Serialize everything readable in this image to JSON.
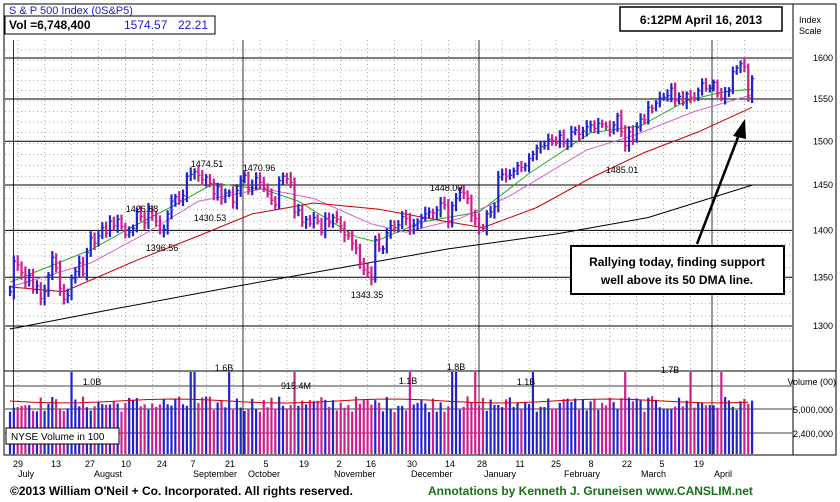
{
  "header": {
    "title": "S & P 500 Index  (0S&P5)",
    "volume_label": "Vol =6,748,400",
    "price": "1574.57",
    "change": "22.21",
    "timestamp": "6:12PM April 16, 2013",
    "scale_label_1": "Index",
    "scale_label_2": "Scale"
  },
  "annotation_note": {
    "line1": "Rallying today, finding support",
    "line2": "well above its 50 DMA line."
  },
  "volume_panel": {
    "legend": "NYSE Volume in 100",
    "axis_title": "Volume (00)",
    "axis_ticks": [
      "5,000,000",
      "2,400,000"
    ],
    "labels": [
      "1.0B",
      "1.6B",
      "915.4M",
      "1.1B",
      "1.8B",
      "1.1B",
      "1.7B"
    ]
  },
  "footer": {
    "copyright": "©2013 William O'Neil + Co. Incorporated. All rights reserved.",
    "credit": "Annotations by Kenneth J. Gruneisen www.CANSLIM.net"
  },
  "chart_data": {
    "type": "candlestick",
    "y_ticks": [
      1300,
      1350,
      1400,
      1450,
      1500,
      1550,
      1600
    ],
    "ylim": [
      1275,
      1620
    ],
    "y_scale": "log",
    "grid": true,
    "date_ticks": [
      "29",
      "13",
      "27",
      "10",
      "24",
      "7",
      "21",
      "5",
      "19",
      "2",
      "16",
      "30",
      "14",
      "28",
      "11",
      "25",
      "8",
      "22",
      "5",
      "19"
    ],
    "months": [
      "July",
      "August",
      "September",
      "October",
      "November",
      "December",
      "January",
      "February",
      "March",
      "April"
    ],
    "price_annotations": [
      "1426.68",
      "1396.56",
      "1474.51",
      "1430.53",
      "1470.96",
      "1343.35",
      "1448.00",
      "1485.01"
    ],
    "series": [
      {
        "kind": "price-bars",
        "points": [
          [
            0,
            1335
          ],
          [
            1,
            1367
          ],
          [
            2,
            1363
          ],
          [
            3,
            1355
          ],
          [
            4,
            1345
          ],
          [
            5,
            1352
          ],
          [
            6,
            1337
          ],
          [
            7,
            1341
          ],
          [
            8,
            1328
          ],
          [
            9,
            1335
          ],
          [
            10,
            1352
          ],
          [
            11,
            1371
          ],
          [
            12,
            1360
          ],
          [
            13,
            1338
          ],
          [
            14,
            1327
          ],
          [
            15,
            1331
          ],
          [
            16,
            1349
          ],
          [
            17,
            1356
          ],
          [
            18,
            1365
          ],
          [
            19,
            1354
          ],
          [
            20,
            1376
          ],
          [
            21,
            1392
          ],
          [
            22,
            1386
          ],
          [
            23,
            1394
          ],
          [
            24,
            1403
          ],
          [
            25,
            1397
          ],
          [
            26,
            1410
          ],
          [
            27,
            1405
          ],
          [
            28,
            1412
          ],
          [
            29,
            1404
          ],
          [
            30,
            1395
          ],
          [
            31,
            1398
          ],
          [
            32,
            1402
          ],
          [
            33,
            1420
          ],
          [
            34,
            1415
          ],
          [
            35,
            1408
          ],
          [
            36,
            1424
          ],
          [
            37,
            1416
          ],
          [
            38,
            1410
          ],
          [
            39,
            1400
          ],
          [
            40,
            1401
          ],
          [
            41,
            1418
          ],
          [
            42,
            1432
          ],
          [
            43,
            1437
          ],
          [
            44,
            1433
          ],
          [
            45,
            1438
          ],
          [
            46,
            1460
          ],
          [
            47,
            1462
          ],
          [
            48,
            1465
          ],
          [
            49,
            1461
          ],
          [
            50,
            1456
          ],
          [
            51,
            1459
          ],
          [
            52,
            1452
          ],
          [
            53,
            1440
          ],
          [
            54,
            1448
          ],
          [
            55,
            1435
          ],
          [
            56,
            1441
          ],
          [
            57,
            1442
          ],
          [
            58,
            1431
          ],
          [
            59,
            1444
          ],
          [
            60,
            1455
          ],
          [
            61,
            1461
          ],
          [
            62,
            1445
          ],
          [
            63,
            1450
          ],
          [
            64,
            1458
          ],
          [
            65,
            1453
          ],
          [
            66,
            1446
          ],
          [
            67,
            1440
          ],
          [
            68,
            1433
          ],
          [
            69,
            1428
          ],
          [
            70,
            1455
          ],
          [
            71,
            1460
          ],
          [
            72,
            1457
          ],
          [
            73,
            1453
          ],
          [
            74,
            1420
          ],
          [
            75,
            1422
          ],
          [
            76,
            1409
          ],
          [
            77,
            1412
          ],
          [
            78,
            1407
          ],
          [
            79,
            1414
          ],
          [
            80,
            1410
          ],
          [
            81,
            1398
          ],
          [
            82,
            1413
          ],
          [
            83,
            1408
          ],
          [
            84,
            1414
          ],
          [
            85,
            1412
          ],
          [
            86,
            1405
          ],
          [
            87,
            1395
          ],
          [
            88,
            1394
          ],
          [
            89,
            1386
          ],
          [
            90,
            1381
          ],
          [
            91,
            1366
          ],
          [
            92,
            1358
          ],
          [
            93,
            1355
          ],
          [
            94,
            1348
          ],
          [
            95,
            1390
          ],
          [
            96,
            1380
          ],
          [
            97,
            1380
          ],
          [
            98,
            1397
          ],
          [
            99,
            1405
          ],
          [
            100,
            1403
          ],
          [
            101,
            1406
          ],
          [
            102,
            1415
          ],
          [
            103,
            1413
          ],
          [
            104,
            1400
          ],
          [
            105,
            1405
          ],
          [
            106,
            1410
          ],
          [
            107,
            1413
          ],
          [
            108,
            1418
          ],
          [
            109,
            1420
          ],
          [
            110,
            1419
          ],
          [
            111,
            1422
          ],
          [
            112,
            1430
          ],
          [
            113,
            1428
          ],
          [
            114,
            1410
          ],
          [
            115,
            1427
          ],
          [
            116,
            1435
          ],
          [
            117,
            1442
          ],
          [
            118,
            1441
          ],
          [
            119,
            1435
          ],
          [
            120,
            1416
          ],
          [
            121,
            1413
          ],
          [
            122,
            1403
          ],
          [
            123,
            1402
          ],
          [
            124,
            1418
          ],
          [
            125,
            1420
          ],
          [
            126,
            1426
          ],
          [
            127,
            1459
          ],
          [
            128,
            1462
          ],
          [
            129,
            1460
          ],
          [
            130,
            1461
          ],
          [
            131,
            1466
          ],
          [
            132,
            1472
          ],
          [
            133,
            1470
          ],
          [
            134,
            1472
          ],
          [
            135,
            1480
          ],
          [
            136,
            1485
          ],
          [
            137,
            1492
          ],
          [
            138,
            1494
          ],
          [
            139,
            1495
          ],
          [
            140,
            1502
          ],
          [
            141,
            1501
          ],
          [
            142,
            1498
          ],
          [
            143,
            1507
          ],
          [
            144,
            1498
          ],
          [
            145,
            1500
          ],
          [
            146,
            1511
          ],
          [
            147,
            1513
          ],
          [
            148,
            1508
          ],
          [
            149,
            1512
          ],
          [
            150,
            1517
          ],
          [
            151,
            1519
          ],
          [
            152,
            1515
          ],
          [
            153,
            1521
          ],
          [
            154,
            1520
          ],
          [
            155,
            1517
          ],
          [
            156,
            1511
          ],
          [
            157,
            1519
          ],
          [
            158,
            1530
          ],
          [
            159,
            1511
          ],
          [
            160,
            1495
          ],
          [
            161,
            1511
          ],
          [
            162,
            1502
          ],
          [
            163,
            1516
          ],
          [
            164,
            1526
          ],
          [
            165,
            1525
          ],
          [
            166,
            1540
          ],
          [
            167,
            1539
          ],
          [
            168,
            1545
          ],
          [
            169,
            1551
          ],
          [
            170,
            1552
          ],
          [
            171,
            1554
          ],
          [
            172,
            1563
          ],
          [
            173,
            1548
          ],
          [
            174,
            1553
          ],
          [
            175,
            1545
          ],
          [
            176,
            1556
          ],
          [
            177,
            1552
          ],
          [
            178,
            1551
          ],
          [
            179,
            1560
          ],
          [
            180,
            1569
          ],
          [
            181,
            1562
          ],
          [
            182,
            1563
          ],
          [
            183,
            1570
          ],
          [
            184,
            1556
          ],
          [
            185,
            1551
          ],
          [
            186,
            1559
          ],
          [
            187,
            1561
          ],
          [
            188,
            1583
          ],
          [
            189,
            1588
          ],
          [
            190,
            1593
          ],
          [
            191,
            1589
          ],
          [
            192,
            1552
          ],
          [
            193,
            1574.57
          ]
        ]
      },
      {
        "kind": "moving-average",
        "name": "10-day",
        "points": [
          [
            0,
            1345
          ],
          [
            21,
            1379
          ],
          [
            31,
            1402
          ],
          [
            43,
            1428
          ],
          [
            53,
            1452
          ],
          [
            66,
            1445
          ],
          [
            75,
            1432
          ],
          [
            90,
            1393
          ],
          [
            95,
            1388
          ],
          [
            107,
            1409
          ],
          [
            122,
            1420
          ],
          [
            135,
            1463
          ],
          [
            151,
            1510
          ],
          [
            164,
            1518
          ],
          [
            176,
            1548
          ],
          [
            185,
            1558
          ],
          [
            193,
            1562
          ]
        ]
      },
      {
        "kind": "moving-average",
        "name": "21-day",
        "points": [
          [
            0,
            1340
          ],
          [
            21,
            1365
          ],
          [
            35,
            1396
          ],
          [
            49,
            1432
          ],
          [
            66,
            1446
          ],
          [
            79,
            1435
          ],
          [
            94,
            1407
          ],
          [
            103,
            1398
          ],
          [
            117,
            1413
          ],
          [
            130,
            1438
          ],
          [
            150,
            1490
          ],
          [
            163,
            1508
          ],
          [
            178,
            1535
          ],
          [
            193,
            1555
          ]
        ]
      },
      {
        "kind": "moving-average",
        "name": "50-day",
        "points": [
          [
            0,
            1340
          ],
          [
            14,
            1335
          ],
          [
            33,
            1368
          ],
          [
            49,
            1394
          ],
          [
            63,
            1418
          ],
          [
            79,
            1430
          ],
          [
            96,
            1423
          ],
          [
            113,
            1410
          ],
          [
            123,
            1403
          ],
          [
            137,
            1425
          ],
          [
            151,
            1458
          ],
          [
            165,
            1487
          ],
          [
            179,
            1511
          ],
          [
            193,
            1540
          ]
        ]
      },
      {
        "kind": "moving-average",
        "name": "200-day",
        "points": [
          [
            0,
            1297
          ],
          [
            28,
            1318
          ],
          [
            58,
            1340
          ],
          [
            86,
            1360
          ],
          [
            114,
            1380
          ],
          [
            142,
            1396
          ],
          [
            166,
            1414
          ],
          [
            193,
            1450
          ]
        ]
      }
    ]
  }
}
